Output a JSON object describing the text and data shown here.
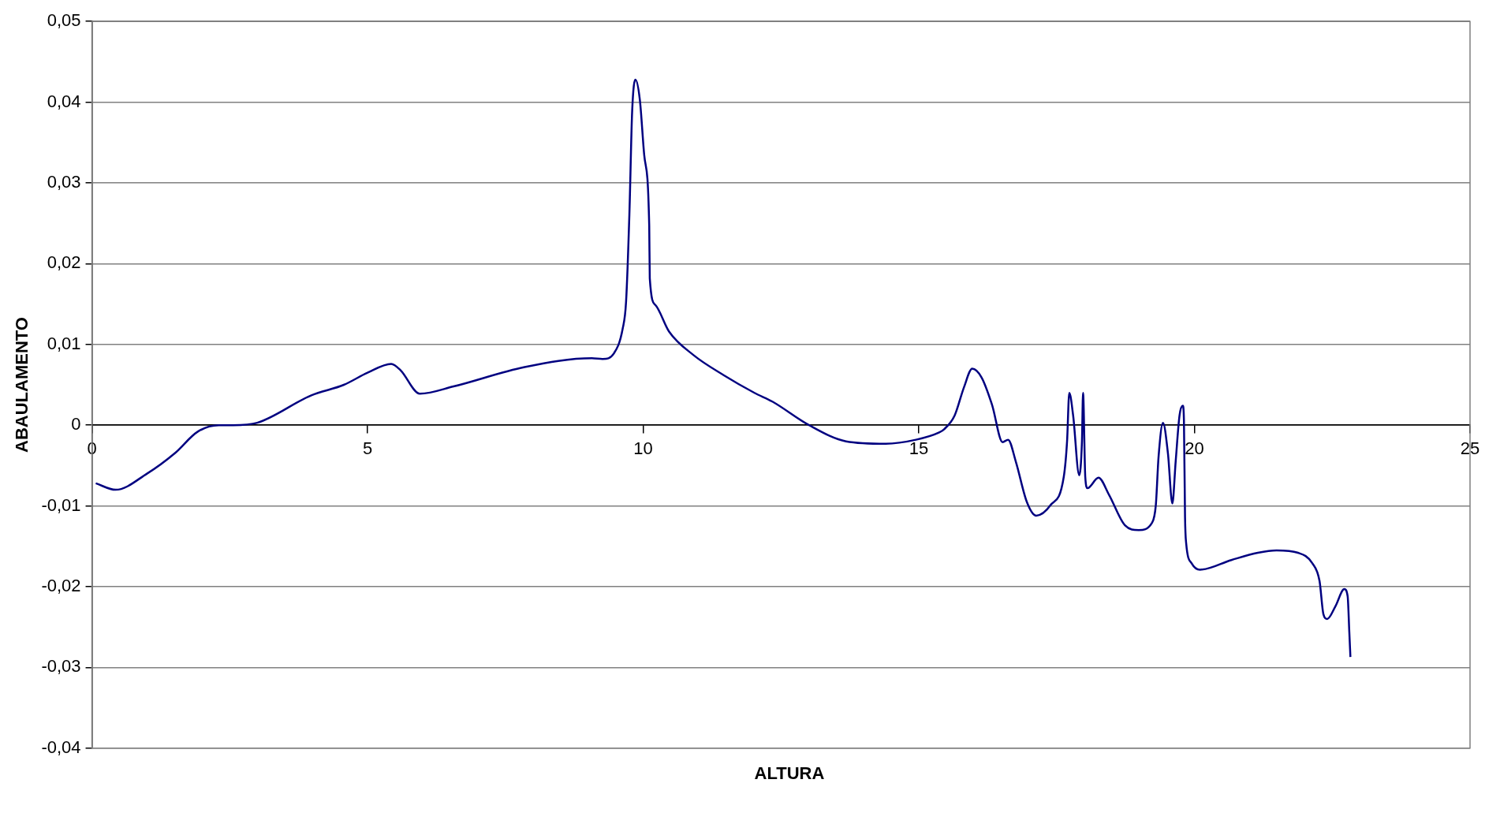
{
  "chart_data": {
    "type": "line",
    "xlabel": "ALTURA",
    "ylabel": "ABAULAMENTO",
    "xlim": [
      0,
      25
    ],
    "xticks": [
      0,
      5,
      10,
      15,
      20,
      25
    ],
    "ylim": [
      -0.04,
      0.05
    ],
    "yticks": [
      {
        "value": -0.04,
        "label": "-0,04"
      },
      {
        "value": -0.03,
        "label": "-0,03"
      },
      {
        "value": -0.02,
        "label": "-0,02"
      },
      {
        "value": -0.01,
        "label": "-0,01"
      },
      {
        "value": 0,
        "label": "0"
      },
      {
        "value": 0.01,
        "label": "0,01"
      },
      {
        "value": 0.02,
        "label": "0,02"
      },
      {
        "value": 0.03,
        "label": "0,03"
      },
      {
        "value": 0.04,
        "label": "0,04"
      },
      {
        "value": 0.05,
        "label": "0,05"
      }
    ],
    "grid": "y",
    "legend": false,
    "marker": "none",
    "line_style": "solid",
    "series": [
      {
        "color": "#000080",
        "x": [
          0.07,
          0.43,
          1.0,
          1.5,
          1.92,
          2.3,
          2.56,
          3.0,
          3.98,
          4.57,
          5.0,
          5.43,
          5.6,
          5.95,
          6.56,
          7.85,
          9.07,
          9.27,
          9.47,
          9.63,
          9.69,
          9.75,
          9.8,
          9.86,
          9.94,
          10.02,
          10.11,
          10.12,
          10.22,
          10.47,
          10.91,
          11.46,
          12.02,
          12.35,
          13.01,
          13.68,
          14.4,
          14.95,
          15.37,
          15.46,
          15.65,
          15.82,
          15.97,
          16.14,
          16.33,
          16.52,
          16.62,
          16.76,
          16.96,
          17.13,
          17.39,
          17.63,
          17.69,
          17.73,
          17.8,
          17.91,
          17.96,
          17.98,
          18.02,
          18.06,
          18.26,
          18.45,
          18.74,
          18.99,
          19.23,
          19.3,
          19.35,
          19.43,
          19.52,
          19.6,
          19.66,
          19.73,
          19.79,
          19.81,
          19.83,
          19.85,
          19.95,
          20.1,
          20.67,
          21.15,
          21.49,
          21.88,
          22.14,
          22.27,
          22.34,
          22.41,
          22.56,
          22.72,
          22.78,
          22.81,
          22.83
        ],
        "values": [
          -0.0072,
          -0.008,
          -0.006,
          -0.0035,
          -0.0008,
          0.0,
          0.0,
          0.0003,
          0.0037,
          0.005,
          0.0065,
          0.0076,
          0.0068,
          0.0039,
          0.0048,
          0.0072,
          0.0083,
          0.0082,
          0.0089,
          0.012,
          0.0153,
          0.0261,
          0.0388,
          0.0428,
          0.0403,
          0.0334,
          0.0247,
          0.0182,
          0.0149,
          0.0116,
          0.0087,
          0.0062,
          0.004,
          0.0029,
          0.0,
          -0.002,
          -0.0023,
          -0.0018,
          -0.0009,
          -0.0005,
          0.0012,
          0.0047,
          0.007,
          0.0059,
          0.0025,
          -0.0021,
          -0.0018,
          -0.0045,
          -0.0095,
          -0.0112,
          -0.0099,
          -0.0064,
          -0.002,
          0.004,
          0.0012,
          -0.0062,
          -0.002,
          0.004,
          -0.0064,
          -0.0078,
          -0.0065,
          -0.0086,
          -0.0124,
          -0.013,
          -0.0121,
          -0.0099,
          -0.0039,
          0.0003,
          -0.0035,
          -0.0097,
          -0.0045,
          0.0012,
          0.0024,
          0.0006,
          -0.0114,
          -0.0146,
          -0.0171,
          -0.0179,
          -0.0167,
          -0.0158,
          -0.0155,
          -0.0158,
          -0.0171,
          -0.0193,
          -0.0234,
          -0.024,
          -0.0224,
          -0.0203,
          -0.0212,
          -0.0256,
          -0.0287
        ]
      }
    ]
  }
}
